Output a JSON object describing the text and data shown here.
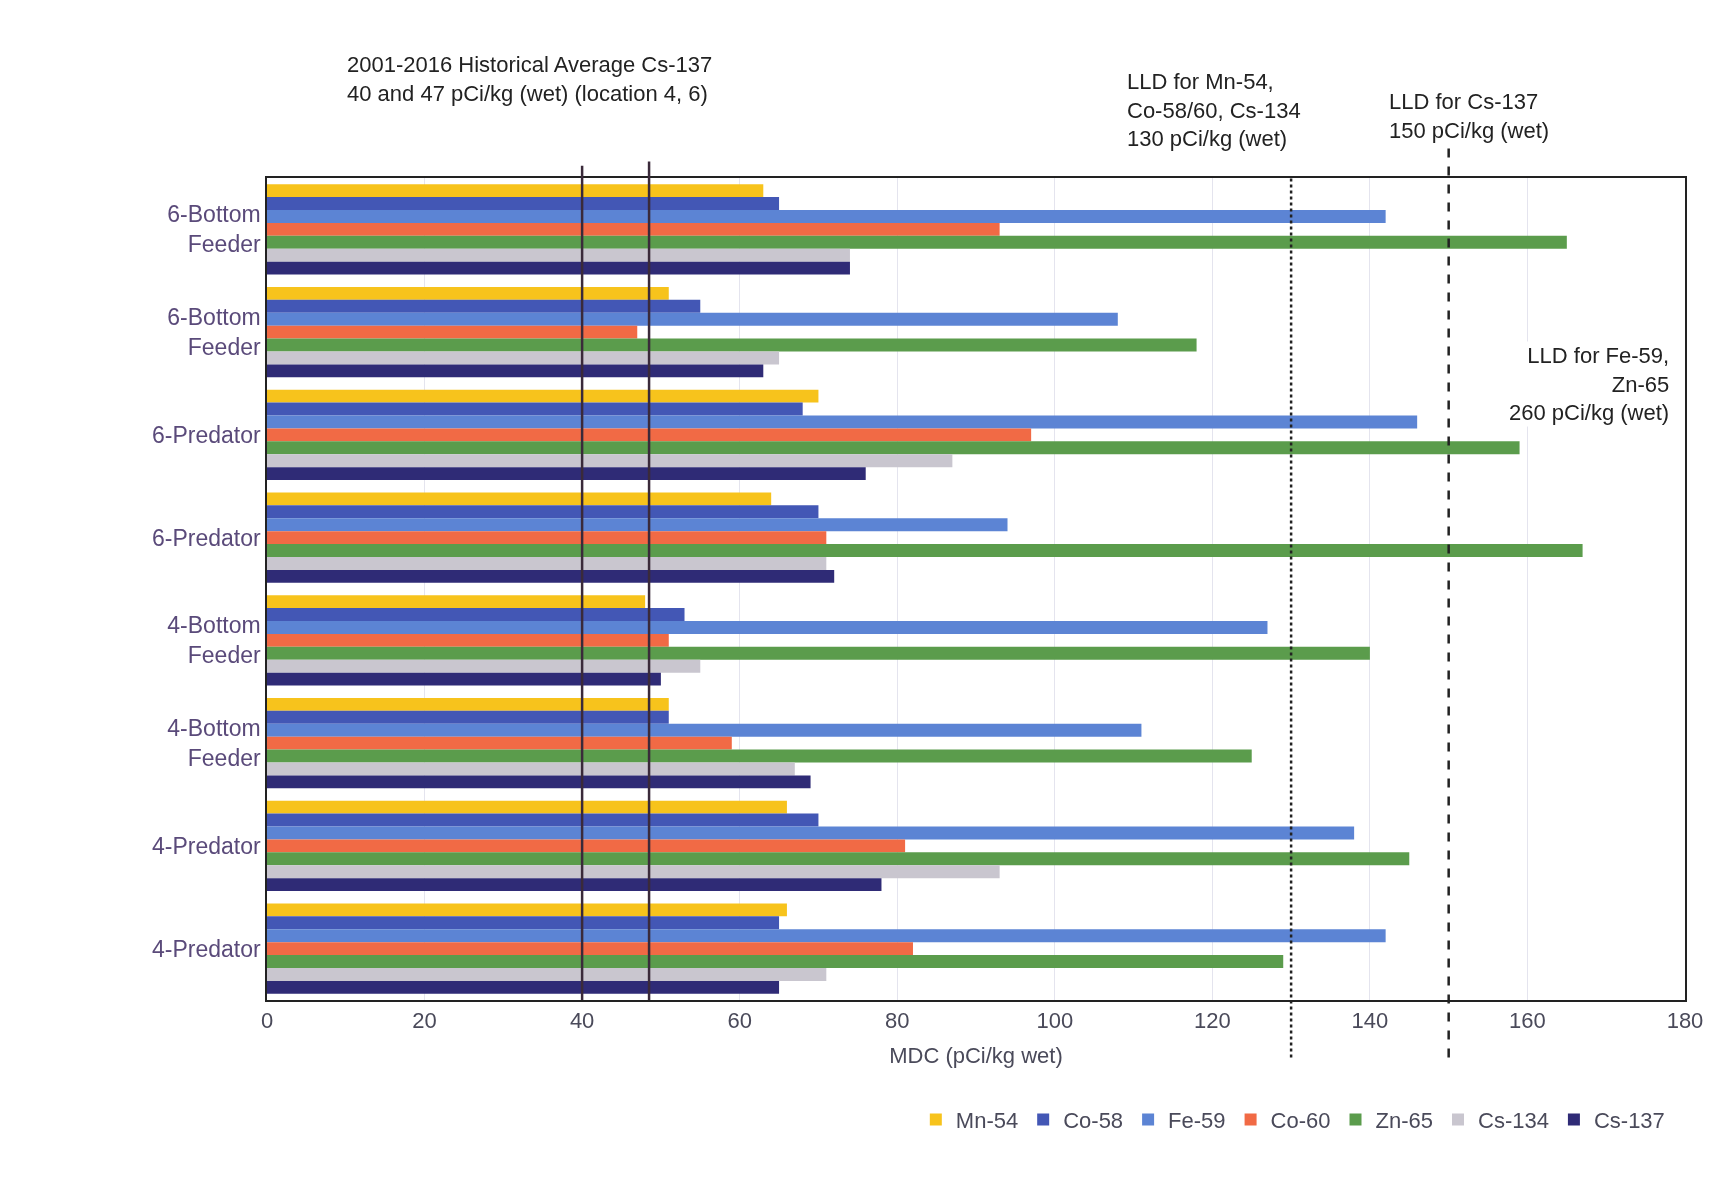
{
  "chart_data": {
    "type": "bar",
    "orientation": "horizontal",
    "xlabel": "MDC (pCi/kg wet)",
    "categories": [
      "6-Bottom Feeder",
      "6-Bottom Feeder",
      "6-Predator",
      "6-Predator",
      "4-Bottom Feeder",
      "4-Bottom Feeder",
      "4-Predator",
      "4-Predator"
    ],
    "series": [
      {
        "name": "Mn-54",
        "color": "#f7c31c",
        "values": [
          63,
          51,
          70,
          64,
          48,
          51,
          66,
          66
        ]
      },
      {
        "name": "Co-58",
        "color": "#4357b5",
        "values": [
          65,
          55,
          68,
          70,
          53,
          51,
          70,
          65
        ]
      },
      {
        "name": "Fe-59",
        "color": "#5c84d4",
        "values": [
          142,
          108,
          146,
          94,
          127,
          111,
          138,
          142
        ]
      },
      {
        "name": "Co-60",
        "color": "#f16a45",
        "values": [
          93,
          47,
          97,
          71,
          51,
          59,
          81,
          82
        ]
      },
      {
        "name": "Zn-65",
        "color": "#5b9c4c",
        "values": [
          165,
          118,
          159,
          167,
          140,
          125,
          145,
          129
        ]
      },
      {
        "name": "Cs-134",
        "color": "#c9c6cf",
        "values": [
          74,
          65,
          87,
          71,
          55,
          67,
          93,
          71
        ]
      },
      {
        "name": "Cs-137",
        "color": "#2f2b76",
        "values": [
          74,
          63,
          76,
          72,
          50,
          69,
          78,
          65
        ]
      }
    ],
    "xlim": [
      0,
      180
    ],
    "xticks": [
      0,
      20,
      40,
      60,
      80,
      100,
      120,
      140,
      160,
      180
    ],
    "grid": "x",
    "legend": "bottom",
    "ref_lines": [
      {
        "axis": "x",
        "value": 40,
        "color": "#3a2a3a",
        "line_style": "solid"
      },
      {
        "axis": "x",
        "value": 48.5,
        "color": "#3a2a3a",
        "line_style": "solid"
      },
      {
        "axis": "x",
        "value": 130,
        "color": "#222222",
        "line_style": "dotted"
      },
      {
        "axis": "x",
        "value": 150,
        "color": "#222222",
        "line_style": "dashed"
      }
    ],
    "annotations": [
      "2001-2016 Historical Average Cs-137\n40 and 47 pCi/kg (wet) (location 4, 6)",
      "LLD for Mn-54,\nCo-58/60, Cs-134\n130 pCi/kg (wet)",
      "LLD for Cs-137\n150 pCi/kg (wet)",
      "LLD for Fe-59,\nZn-65\n260 pCi/kg (wet)"
    ]
  }
}
